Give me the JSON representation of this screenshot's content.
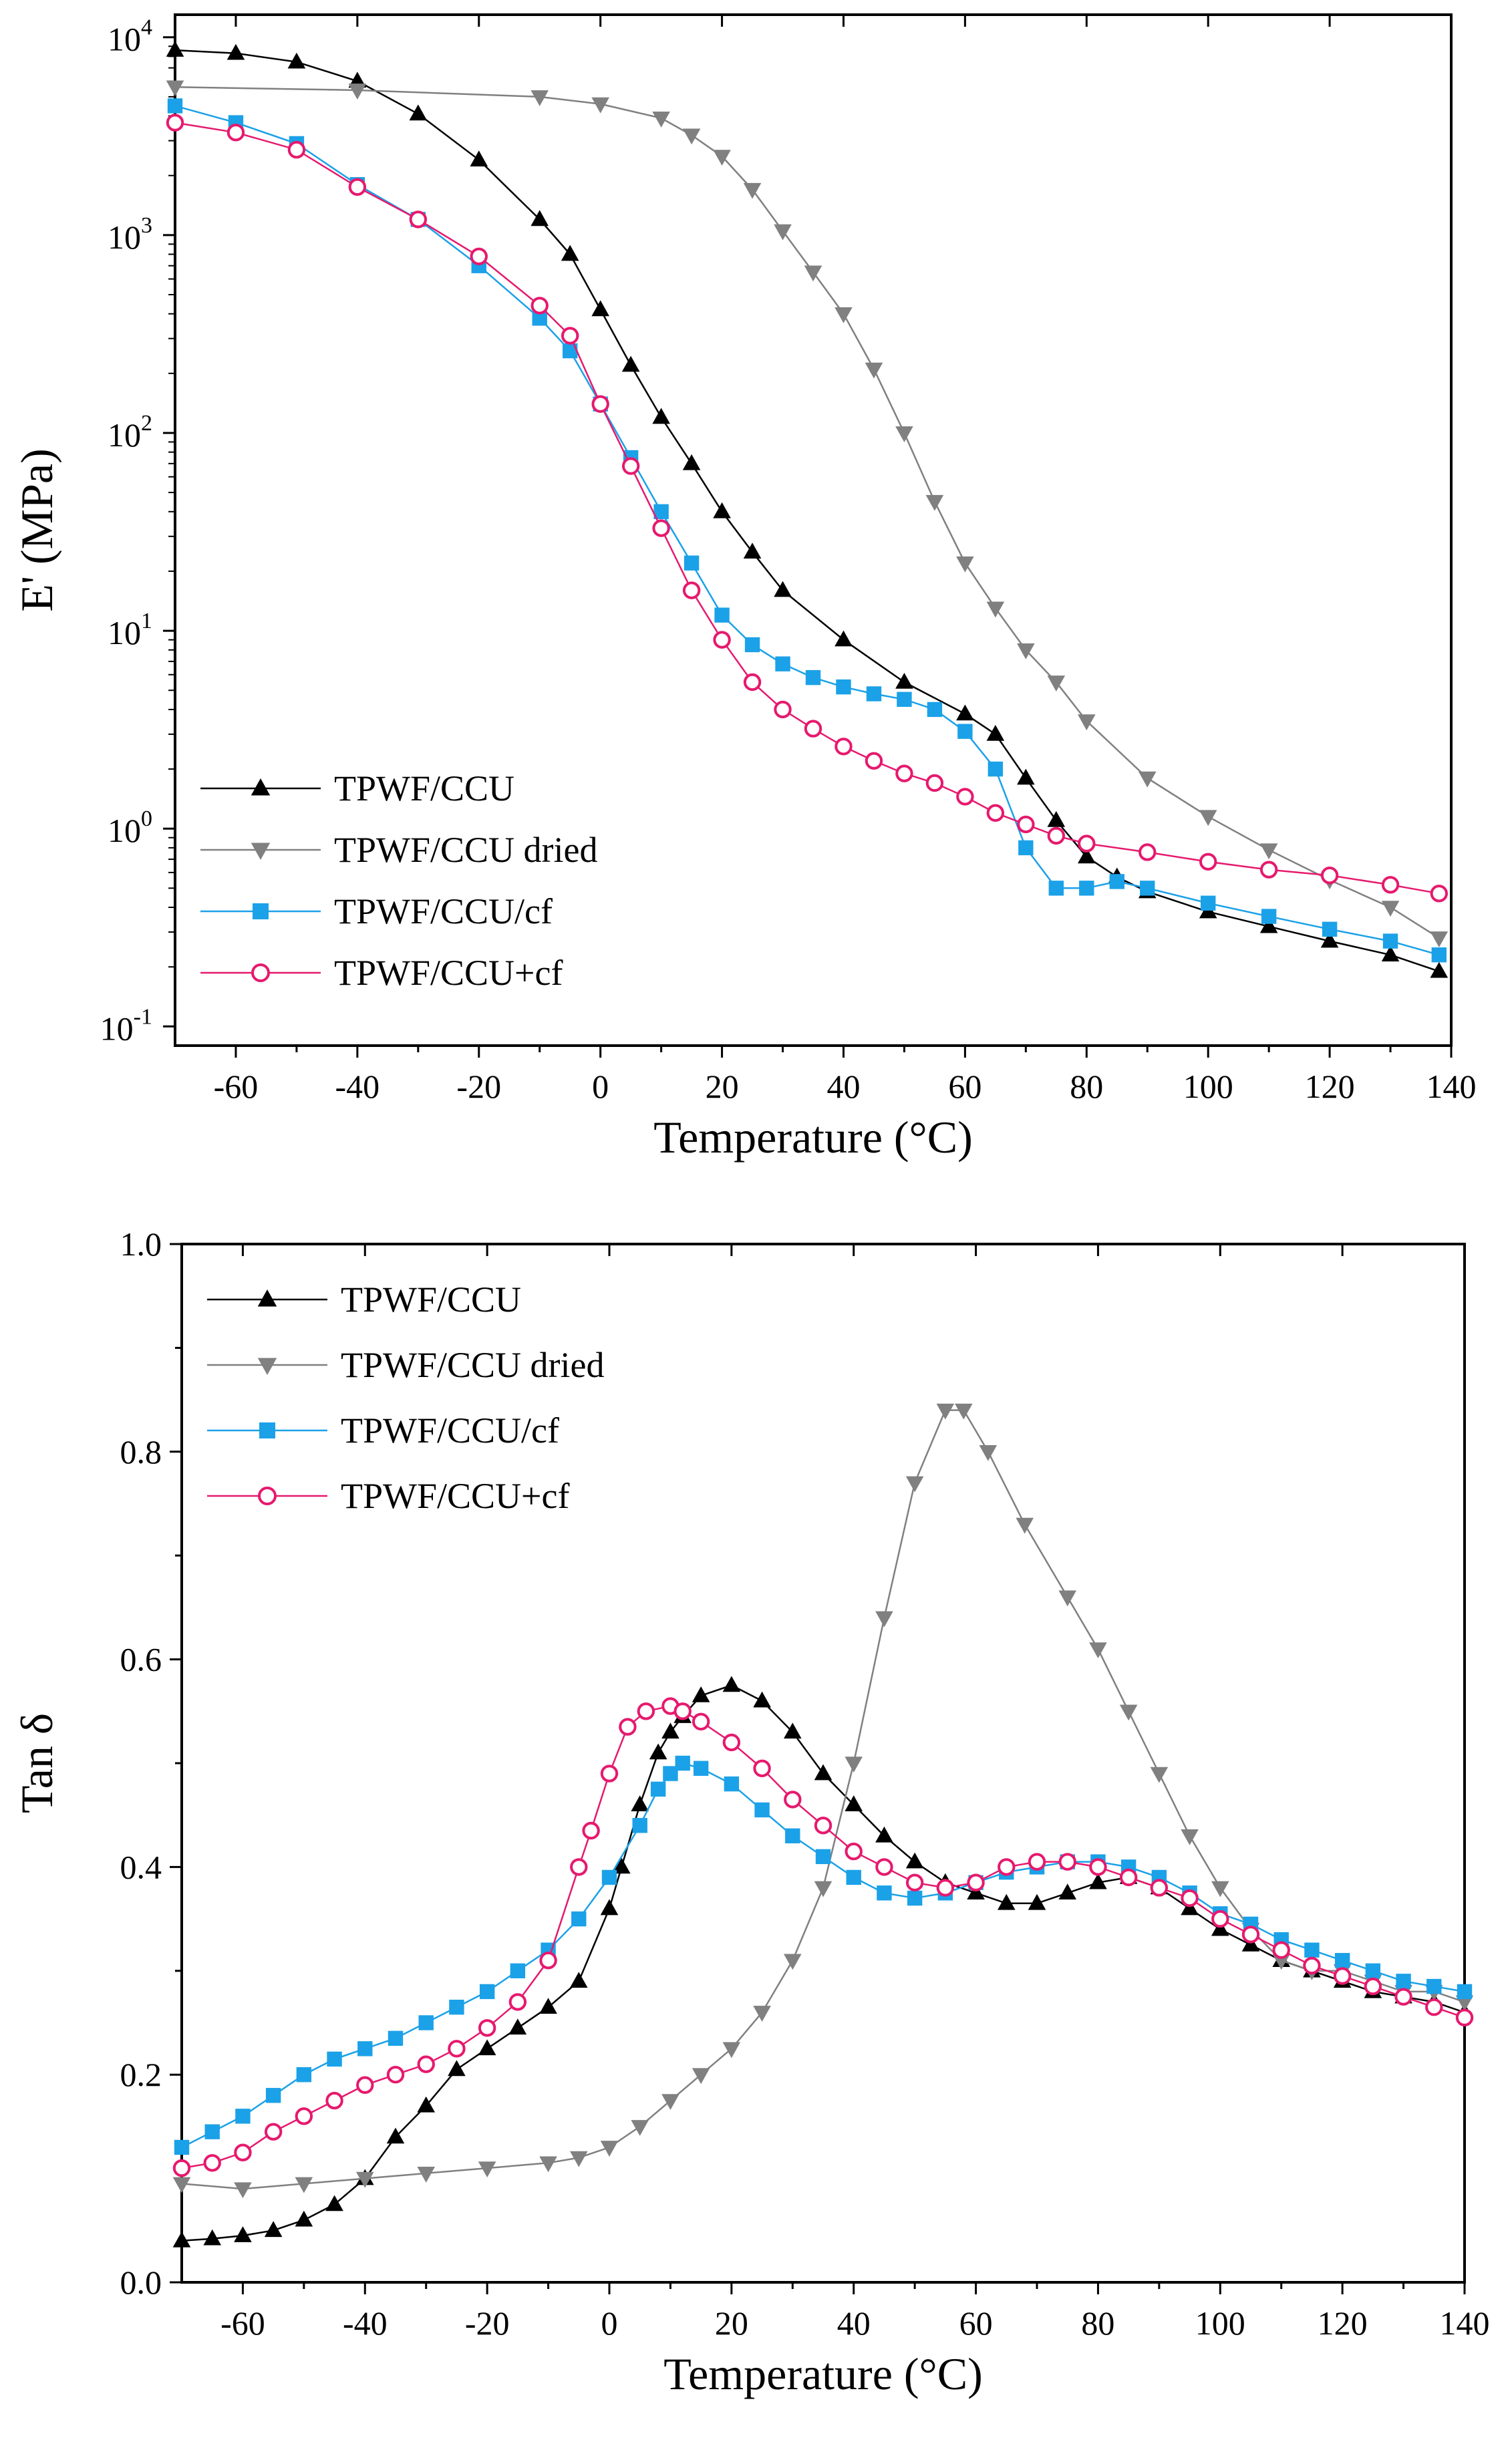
{
  "figure": {
    "panels": [
      "modulus",
      "tan_delta"
    ]
  },
  "chart_data": [
    {
      "id": "modulus",
      "type": "line",
      "scale_y": "log",
      "title": "",
      "xlabel": "Temperature (°C)",
      "ylabel": "E' (MPa)",
      "xlim": [
        -70,
        140
      ],
      "ylim": [
        0.08,
        13000
      ],
      "x_ticks": [
        -60,
        -40,
        -20,
        0,
        20,
        40,
        60,
        80,
        100,
        120,
        140
      ],
      "x_tick_labels": [
        "-60",
        "-40",
        "-20",
        "0",
        "20",
        "40",
        "60",
        "80",
        "100",
        "120",
        "140"
      ],
      "y_ticks": [
        0.1,
        1,
        10,
        100,
        1000,
        10000
      ],
      "y_tick_labels": [
        {
          "base": "10",
          "exp": "-1"
        },
        {
          "base": "10",
          "exp": "0"
        },
        {
          "base": "10",
          "exp": "1"
        },
        {
          "base": "10",
          "exp": "2"
        },
        {
          "base": "10",
          "exp": "3"
        },
        {
          "base": "10",
          "exp": "4"
        }
      ],
      "legend_position": "bottom-left",
      "series": [
        {
          "name": "TPWF/CCU",
          "color": "#000000",
          "marker": "triangle-up",
          "x": [
            -70,
            -60,
            -50,
            -40,
            -30,
            -20,
            -10,
            -5,
            0,
            5,
            10,
            15,
            20,
            25,
            30,
            40,
            50,
            60,
            65,
            70,
            75,
            80,
            85,
            90,
            100,
            110,
            120,
            130,
            138
          ],
          "y": [
            8600,
            8300,
            7500,
            6000,
            4100,
            2400,
            1200,
            800,
            420,
            220,
            120,
            70,
            40,
            25,
            16,
            9,
            5.5,
            3.8,
            3.0,
            1.8,
            1.1,
            0.72,
            0.57,
            0.48,
            0.38,
            0.32,
            0.27,
            0.23,
            0.19
          ]
        },
        {
          "name": "TPWF/CCU dried",
          "color": "#808080",
          "marker": "triangle-down",
          "x": [
            -70,
            -40,
            -10,
            0,
            10,
            15,
            20,
            25,
            30,
            35,
            40,
            45,
            50,
            55,
            60,
            65,
            70,
            75,
            80,
            90,
            100,
            110,
            120,
            130,
            138
          ],
          "y": [
            5600,
            5400,
            5000,
            4600,
            3900,
            3200,
            2500,
            1700,
            1050,
            650,
            400,
            210,
            100,
            45,
            22,
            13,
            8,
            5.5,
            3.5,
            1.8,
            1.15,
            0.78,
            0.55,
            0.4,
            0.28
          ]
        },
        {
          "name": "TPWF/CCU/cf",
          "color": "#1ba1e8",
          "marker": "square",
          "x": [
            -70,
            -60,
            -50,
            -40,
            -30,
            -20,
            -10,
            -5,
            0,
            5,
            10,
            15,
            20,
            25,
            30,
            35,
            40,
            45,
            50,
            55,
            60,
            65,
            70,
            75,
            80,
            85,
            90,
            100,
            110,
            120,
            130,
            138
          ],
          "y": [
            4500,
            3700,
            2900,
            1800,
            1200,
            700,
            380,
            260,
            140,
            75,
            40,
            22,
            12,
            8.5,
            6.8,
            5.8,
            5.2,
            4.8,
            4.5,
            4.0,
            3.1,
            2.0,
            0.8,
            0.5,
            0.5,
            0.54,
            0.5,
            0.42,
            0.36,
            0.31,
            0.27,
            0.23
          ]
        },
        {
          "name": "TPWF/CCU+cf",
          "color": "#e6196e",
          "marker": "circle-open",
          "x": [
            -70,
            -60,
            -50,
            -40,
            -30,
            -20,
            -10,
            -5,
            0,
            5,
            10,
            15,
            20,
            25,
            30,
            35,
            40,
            45,
            50,
            55,
            60,
            65,
            70,
            75,
            80,
            90,
            100,
            110,
            120,
            130,
            138
          ],
          "y": [
            3700,
            3300,
            2700,
            1750,
            1200,
            780,
            440,
            310,
            140,
            68,
            33,
            16,
            9,
            5.5,
            4.0,
            3.2,
            2.6,
            2.2,
            1.9,
            1.7,
            1.45,
            1.2,
            1.05,
            0.92,
            0.84,
            0.76,
            0.68,
            0.62,
            0.58,
            0.52,
            0.47
          ]
        }
      ]
    },
    {
      "id": "tan_delta",
      "type": "line",
      "title": "",
      "xlabel": "Temperature (°C)",
      "ylabel": "Tan δ",
      "xlim": [
        -70,
        140
      ],
      "ylim": [
        0.0,
        1.0
      ],
      "x_ticks": [
        -60,
        -40,
        -20,
        0,
        20,
        40,
        60,
        80,
        100,
        120,
        140
      ],
      "x_tick_labels": [
        "-60",
        "-40",
        "-20",
        "0",
        "20",
        "40",
        "60",
        "80",
        "100",
        "120",
        "140"
      ],
      "y_ticks": [
        0.0,
        0.2,
        0.4,
        0.6,
        0.8,
        1.0
      ],
      "y_tick_labels": [
        "0.0",
        "0.2",
        "0.4",
        "0.6",
        "0.8",
        "1.0"
      ],
      "legend_position": "top-left",
      "series": [
        {
          "name": "TPWF/CCU",
          "color": "#000000",
          "marker": "triangle-up",
          "x": [
            -70,
            -65,
            -60,
            -55,
            -50,
            -45,
            -40,
            -35,
            -30,
            -25,
            -20,
            -15,
            -10,
            -5,
            0,
            2,
            5,
            8,
            10,
            12,
            15,
            20,
            25,
            30,
            35,
            40,
            45,
            50,
            55,
            60,
            65,
            70,
            75,
            80,
            85,
            90,
            95,
            100,
            105,
            110,
            115,
            120,
            125,
            130,
            135,
            140
          ],
          "y": [
            0.04,
            0.042,
            0.045,
            0.05,
            0.06,
            0.075,
            0.1,
            0.14,
            0.17,
            0.205,
            0.225,
            0.245,
            0.265,
            0.29,
            0.36,
            0.4,
            0.46,
            0.51,
            0.53,
            0.545,
            0.565,
            0.575,
            0.56,
            0.53,
            0.49,
            0.46,
            0.43,
            0.405,
            0.385,
            0.375,
            0.365,
            0.365,
            0.375,
            0.385,
            0.39,
            0.38,
            0.36,
            0.34,
            0.325,
            0.31,
            0.3,
            0.29,
            0.28,
            0.275,
            0.27,
            0.26
          ]
        },
        {
          "name": "TPWF/CCU dried",
          "color": "#808080",
          "marker": "triangle-down",
          "x": [
            -70,
            -60,
            -50,
            -40,
            -30,
            -20,
            -10,
            -5,
            0,
            5,
            10,
            15,
            20,
            25,
            30,
            35,
            40,
            45,
            50,
            55,
            58,
            62,
            68,
            75,
            80,
            85,
            90,
            95,
            100,
            105,
            110,
            115,
            120,
            125,
            130,
            135,
            140
          ],
          "y": [
            0.095,
            0.09,
            0.095,
            0.1,
            0.105,
            0.11,
            0.115,
            0.12,
            0.13,
            0.15,
            0.175,
            0.2,
            0.225,
            0.26,
            0.31,
            0.38,
            0.5,
            0.64,
            0.77,
            0.84,
            0.84,
            0.8,
            0.73,
            0.66,
            0.61,
            0.55,
            0.49,
            0.43,
            0.38,
            0.34,
            0.31,
            0.3,
            0.3,
            0.29,
            0.28,
            0.28,
            0.27
          ]
        },
        {
          "name": "TPWF/CCU/cf",
          "color": "#1ba1e8",
          "marker": "square",
          "x": [
            -70,
            -65,
            -60,
            -55,
            -50,
            -45,
            -40,
            -35,
            -30,
            -25,
            -20,
            -15,
            -10,
            -5,
            0,
            5,
            8,
            10,
            12,
            15,
            20,
            25,
            30,
            35,
            40,
            45,
            50,
            55,
            60,
            65,
            70,
            75,
            80,
            85,
            90,
            95,
            100,
            105,
            110,
            115,
            120,
            125,
            130,
            135,
            140
          ],
          "y": [
            0.13,
            0.145,
            0.16,
            0.18,
            0.2,
            0.215,
            0.225,
            0.235,
            0.25,
            0.265,
            0.28,
            0.3,
            0.32,
            0.35,
            0.39,
            0.44,
            0.475,
            0.49,
            0.5,
            0.495,
            0.48,
            0.455,
            0.43,
            0.41,
            0.39,
            0.375,
            0.37,
            0.375,
            0.385,
            0.395,
            0.4,
            0.405,
            0.405,
            0.4,
            0.39,
            0.375,
            0.355,
            0.345,
            0.33,
            0.32,
            0.31,
            0.3,
            0.29,
            0.285,
            0.28
          ]
        },
        {
          "name": "TPWF/CCU+cf",
          "color": "#e6196e",
          "marker": "circle-open",
          "x": [
            -70,
            -65,
            -60,
            -55,
            -50,
            -45,
            -40,
            -35,
            -30,
            -25,
            -20,
            -15,
            -10,
            -5,
            -3,
            0,
            3,
            6,
            10,
            12,
            15,
            20,
            25,
            30,
            35,
            40,
            45,
            50,
            55,
            60,
            65,
            70,
            75,
            80,
            85,
            90,
            95,
            100,
            105,
            110,
            115,
            120,
            125,
            130,
            135,
            140
          ],
          "y": [
            0.11,
            0.115,
            0.125,
            0.145,
            0.16,
            0.175,
            0.19,
            0.2,
            0.21,
            0.225,
            0.245,
            0.27,
            0.31,
            0.4,
            0.435,
            0.49,
            0.535,
            0.55,
            0.555,
            0.55,
            0.54,
            0.52,
            0.495,
            0.465,
            0.44,
            0.415,
            0.4,
            0.385,
            0.38,
            0.385,
            0.4,
            0.405,
            0.405,
            0.4,
            0.39,
            0.38,
            0.37,
            0.35,
            0.335,
            0.32,
            0.305,
            0.295,
            0.285,
            0.275,
            0.265,
            0.255
          ]
        }
      ]
    }
  ]
}
